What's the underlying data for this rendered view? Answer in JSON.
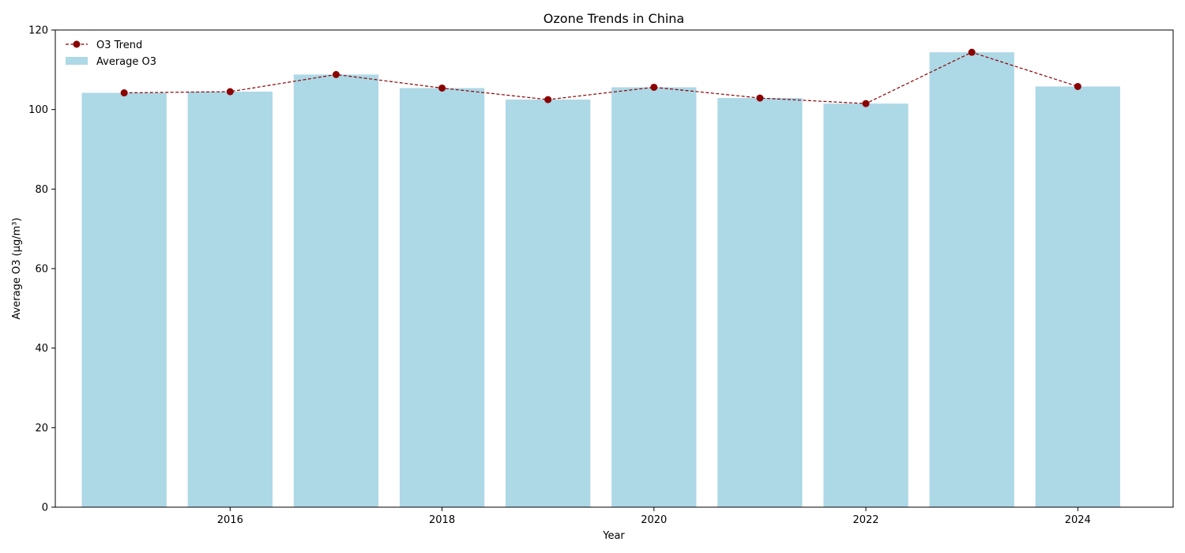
{
  "chart_data": {
    "type": "bar",
    "title": "Ozone Trends in China",
    "xlabel": "Year",
    "ylabel": "Average O3 (µg/m³)",
    "x": [
      2015,
      2016,
      2017,
      2018,
      2019,
      2020,
      2021,
      2022,
      2023,
      2024
    ],
    "xlim": [
      2014.35,
      2024.9
    ],
    "ylim": [
      0,
      120
    ],
    "x_ticks": [
      2016,
      2018,
      2020,
      2022,
      2024
    ],
    "y_ticks": [
      0,
      20,
      40,
      60,
      80,
      100,
      120
    ],
    "grid": false,
    "legend_position": "top-left",
    "series": [
      {
        "name": "Average O3",
        "kind": "bar",
        "color": "#add8e6",
        "values": [
          104.2,
          104.5,
          108.8,
          105.4,
          102.5,
          105.6,
          102.9,
          101.5,
          114.4,
          105.8
        ]
      },
      {
        "name": "O3 Trend",
        "kind": "line",
        "color": "#8b0000",
        "line_style": "dashed",
        "marker": "circle",
        "values": [
          104.2,
          104.5,
          108.8,
          105.4,
          102.5,
          105.6,
          102.9,
          101.5,
          114.4,
          105.8
        ]
      }
    ]
  }
}
